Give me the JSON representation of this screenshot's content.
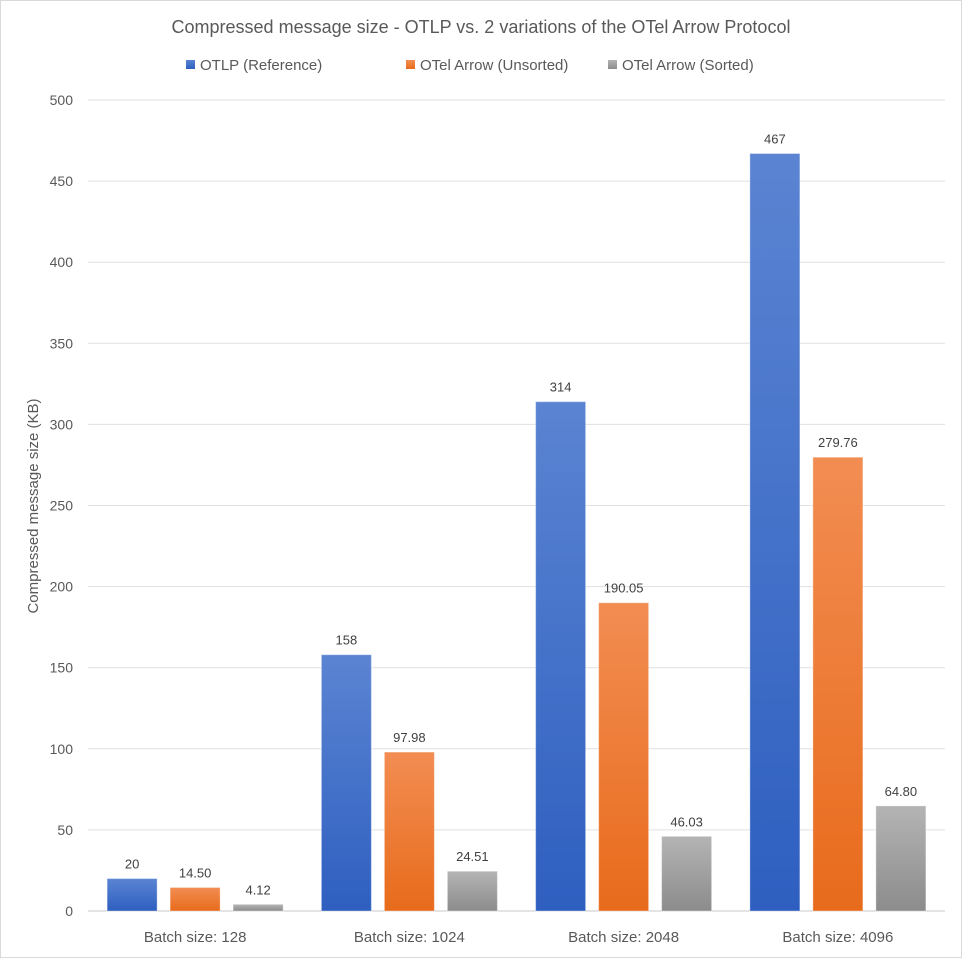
{
  "chart_data": {
    "type": "bar",
    "title": "Compressed message size - OTLP vs. 2 variations of the OTel Arrow Protocol",
    "xlabel": "",
    "ylabel": "Compressed message size (KB)",
    "ylim": [
      0,
      500
    ],
    "yticks": [
      0,
      50,
      100,
      150,
      200,
      250,
      300,
      350,
      400,
      450,
      500
    ],
    "grid": true,
    "legend_position": "top",
    "categories": [
      "Batch size: 128",
      "Batch size: 1024",
      "Batch size: 2048",
      "Batch size: 4096"
    ],
    "series": [
      {
        "name": "OTLP (Reference)",
        "values": [
          20,
          158,
          314,
          467
        ],
        "labels": [
          "20",
          "158",
          "314",
          "467"
        ],
        "color": "#4472c4"
      },
      {
        "name": "OTel Arrow (Unsorted)",
        "values": [
          14.5,
          97.98,
          190.05,
          279.76
        ],
        "labels": [
          "14.50",
          "97.98",
          "190.05",
          "279.76"
        ],
        "color": "#ed7d31"
      },
      {
        "name": "OTel Arrow (Sorted)",
        "values": [
          4.12,
          24.51,
          46.03,
          64.8
        ],
        "labels": [
          "4.12",
          "24.51",
          "46.03",
          "64.80"
        ],
        "color": "#a5a5a5"
      }
    ]
  }
}
